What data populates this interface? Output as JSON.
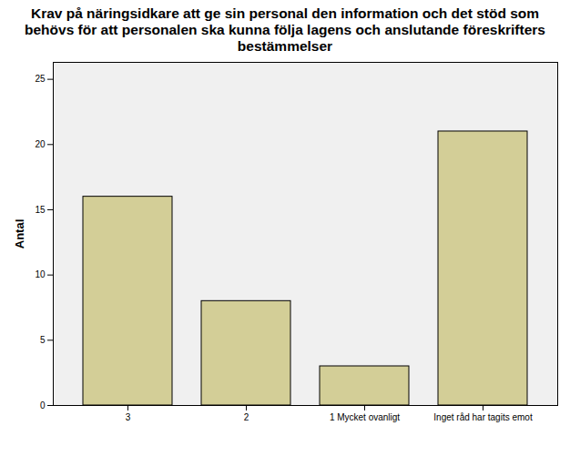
{
  "chart_data": {
    "type": "bar",
    "title": "Krav på näringsidkare att ge sin personal den information och det stöd som behövs för att personalen ska kunna följa lagens och anslutande föreskrifters bestämmelser",
    "y_label": "Antal",
    "categories": [
      "3",
      "2",
      "1 Mycket ovanligt",
      "Inget råd har tagits emot"
    ],
    "values": [
      16,
      8,
      3,
      21
    ],
    "color": "#d3ce97",
    "ylim": [
      0,
      26.3
    ],
    "yticks": [
      0,
      5,
      10,
      15,
      20,
      25
    ],
    "grid": false
  }
}
